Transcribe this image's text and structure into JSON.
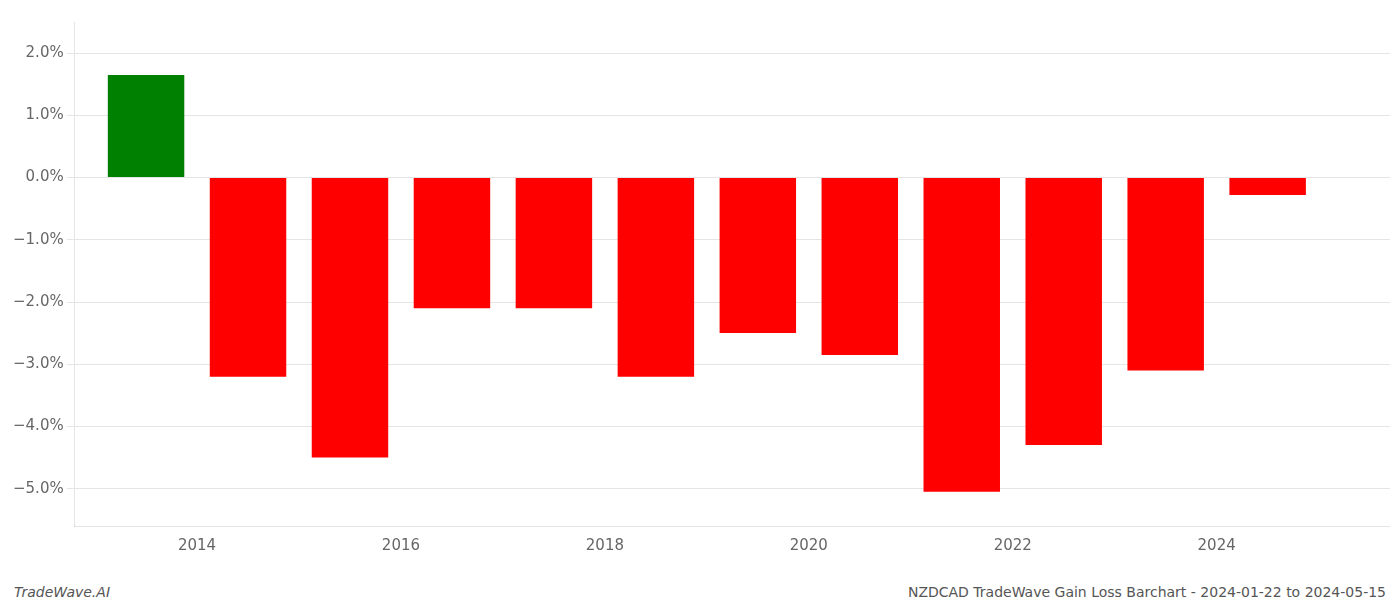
{
  "chart_data": {
    "type": "bar",
    "x": [
      2013.5,
      2014.5,
      2015.5,
      2016.5,
      2017.5,
      2018.5,
      2019.5,
      2020.5,
      2021.5,
      2022.5,
      2023.5,
      2024.5
    ],
    "values": [
      1.65,
      -3.2,
      -4.5,
      -2.1,
      -2.1,
      -3.2,
      -2.5,
      -2.85,
      -5.05,
      -4.3,
      -3.1,
      -0.28
    ],
    "colors": [
      "#008000",
      "#ff0000",
      "#ff0000",
      "#ff0000",
      "#ff0000",
      "#ff0000",
      "#ff0000",
      "#ff0000",
      "#ff0000",
      "#ff0000",
      "#ff0000",
      "#ff0000"
    ],
    "xlim": [
      2012.8,
      2025.7
    ],
    "xticks": [
      2014,
      2016,
      2018,
      2020,
      2022,
      2024
    ],
    "ylim": [
      -5.6,
      2.5
    ],
    "yticks": [
      {
        "value": -5.0,
        "label": "−5.0%"
      },
      {
        "value": -4.0,
        "label": "−4.0%"
      },
      {
        "value": -3.0,
        "label": "−3.0%"
      },
      {
        "value": -2.0,
        "label": "−2.0%"
      },
      {
        "value": -1.0,
        "label": "−1.0%"
      },
      {
        "value": 0.0,
        "label": "0.0%"
      },
      {
        "value": 1.0,
        "label": "1.0%"
      },
      {
        "value": 2.0,
        "label": "2.0%"
      }
    ],
    "grid": true,
    "annotations": [
      "TradeWave.AI",
      "NZDCAD TradeWave Gain Loss Barchart - 2024-01-22 to 2024-05-15"
    ]
  }
}
